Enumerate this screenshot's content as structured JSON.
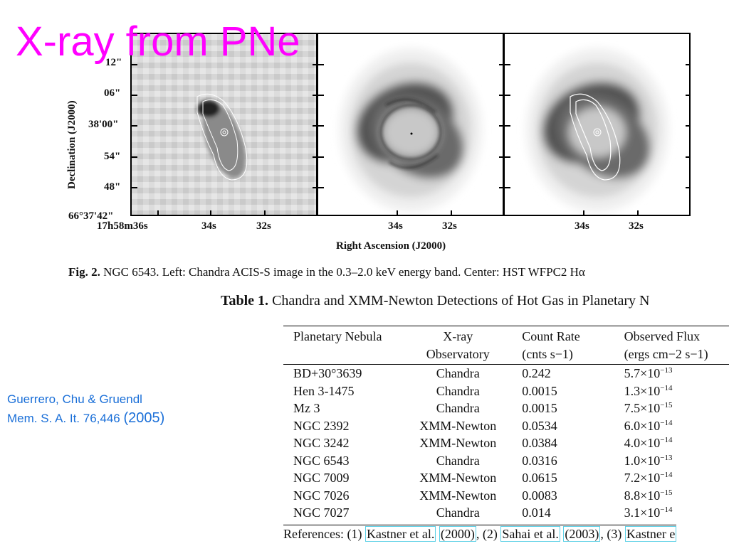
{
  "slide": {
    "title": "X-ray from PNe",
    "credit_line1": "Guerrero, Chu & Gruendl",
    "credit_line2": "Mem. S. A. It. 76,446",
    "credit_year": "(2005)"
  },
  "figure": {
    "y_axis_label": "Declination (J2000)",
    "y_ticks": [
      "12\"",
      "06\"",
      "38'00\"",
      "54\"",
      "48\"",
      "66°37'42\""
    ],
    "x_ticks_left": [
      "17h58m36s",
      "34s",
      "32s"
    ],
    "x_ticks_center": [
      "34s",
      "32s"
    ],
    "x_ticks_right": [
      "34s",
      "32s"
    ],
    "x_axis_label": "Right Ascension (J2000)",
    "caption_label": "Fig. 2.",
    "caption_text": "NGC 6543. Left: Chandra ACIS-S image in the 0.3–2.0 keV energy band. Center: HST WFPC2 Hα"
  },
  "table": {
    "label": "Table 1.",
    "title": "Chandra and XMM-Newton Detections of Hot Gas in Planetary N",
    "headers_top": [
      "Planetary Nebula",
      "X-ray",
      "Count Rate",
      "Observed Flux"
    ],
    "headers_bottom": [
      "",
      "Observatory",
      "(cnts s−1)",
      "(ergs cm−2 s−1)"
    ],
    "rows": [
      {
        "name": "BD+30°3639",
        "observatory": "Chandra",
        "count_rate": "0.242",
        "flux": "5.7×10",
        "flux_exp": "−13"
      },
      {
        "name": "Hen 3-1475",
        "observatory": "Chandra",
        "count_rate": "0.0015",
        "flux": "1.3×10",
        "flux_exp": "−14"
      },
      {
        "name": "Mz 3",
        "observatory": "Chandra",
        "count_rate": "0.0015",
        "flux": "7.5×10",
        "flux_exp": "−15"
      },
      {
        "name": "NGC 2392",
        "observatory": "XMM-Newton",
        "count_rate": "0.0534",
        "flux": "6.0×10",
        "flux_exp": "−14"
      },
      {
        "name": "NGC 3242",
        "observatory": "XMM-Newton",
        "count_rate": "0.0384",
        "flux": "4.0×10",
        "flux_exp": "−14"
      },
      {
        "name": "NGC 6543",
        "observatory": "Chandra",
        "count_rate": "0.0316",
        "flux": "1.0×10",
        "flux_exp": "−13"
      },
      {
        "name": "NGC 7009",
        "observatory": "XMM-Newton",
        "count_rate": "0.0615",
        "flux": "7.2×10",
        "flux_exp": "−14"
      },
      {
        "name": "NGC 7026",
        "observatory": "XMM-Newton",
        "count_rate": "0.0083",
        "flux": "8.8×10",
        "flux_exp": "−15"
      },
      {
        "name": "NGC 7027",
        "observatory": "Chandra",
        "count_rate": "0.014",
        "flux": "3.1×10",
        "flux_exp": "−14"
      }
    ],
    "references_prefix": "References: (1)",
    "ref1": "Kastner et al.",
    "ref1_year": "(2000)",
    "ref2_prefix": ", (2)",
    "ref2": "Sahai et al.",
    "ref2_year": "(2003)",
    "ref3_prefix": ", (3)",
    "ref3": "Kastner e"
  }
}
